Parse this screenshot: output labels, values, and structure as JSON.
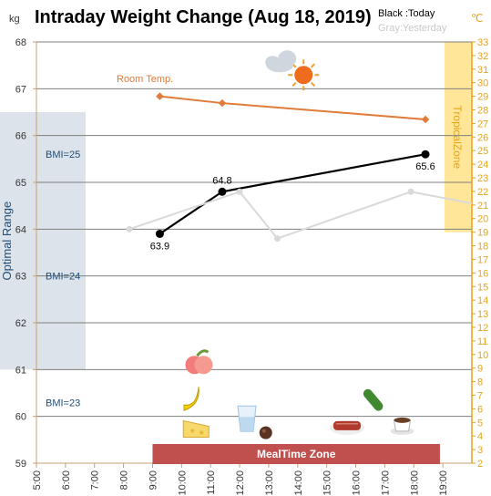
{
  "chart_data": {
    "type": "line",
    "title": "Intraday Weight Change (Aug 18, 2019)",
    "legend": {
      "today": "Black :Today",
      "yesterday": "Gray:Yesterday"
    },
    "y_left": {
      "unit": "kg",
      "min": 59,
      "max": 68,
      "step": 1
    },
    "y_right": {
      "unit": "℃",
      "min": 2,
      "max": 33,
      "step": 1
    },
    "x": {
      "min": 5,
      "max": 20,
      "ticks": [
        "5:00",
        "6:00",
        "7:00",
        "8:00",
        "9:00",
        "10:00",
        "11:00",
        "12:00",
        "13:00",
        "14:00",
        "15:00",
        "16:00",
        "17:00",
        "18:00",
        "19:00"
      ]
    },
    "series": [
      {
        "name": "Today",
        "color": "#000000",
        "points": [
          {
            "x": 9.25,
            "y": 63.9,
            "label": "63.9"
          },
          {
            "x": 11.4,
            "y": 64.8,
            "label": "64.8"
          },
          {
            "x": 18.4,
            "y": 65.6,
            "label": "65.6"
          }
        ]
      },
      {
        "name": "Yesterday",
        "color": "#d9d9d9",
        "points": [
          {
            "x": 8.2,
            "y": 64.0
          },
          {
            "x": 12.0,
            "y": 64.8
          },
          {
            "x": 13.3,
            "y": 63.8
          },
          {
            "x": 17.9,
            "y": 64.8
          },
          {
            "x": 20.0,
            "y": 64.55
          }
        ]
      },
      {
        "name": "Room Temp.",
        "color": "#e07b39",
        "axis": "right",
        "points": [
          {
            "x": 9.25,
            "y": 29
          },
          {
            "x": 11.4,
            "y": 28.5
          },
          {
            "x": 18.4,
            "y": 27.3
          }
        ]
      }
    ],
    "bmi_lines": [
      {
        "label": "BMI=25",
        "y": 65.6
      },
      {
        "label": "BMI=24",
        "y": 63.0
      },
      {
        "label": "BMI=23",
        "y": 60.3
      }
    ],
    "optimal_range": {
      "label": "Optimal Range",
      "from": 61.0,
      "to": 66.5
    },
    "tropical_zone": {
      "label": "TropicalZone",
      "from_temp": 19,
      "to_temp": 33
    },
    "meal_time_zone": {
      "label": "MealTime Zone",
      "from": 9,
      "to": 18.9
    },
    "icons": [
      {
        "name": "sun-cloud-icon",
        "x": 13.7,
        "y": 67.45
      },
      {
        "name": "peach-icon",
        "x": 10.6,
        "y": 61.1
      },
      {
        "name": "banana-icon",
        "x": 10.4,
        "y": 60.4
      },
      {
        "name": "cheese-icon",
        "x": 10.5,
        "y": 59.75
      },
      {
        "name": "water-glass-icon",
        "x": 12.25,
        "y": 59.95
      },
      {
        "name": "chocolate-icon",
        "x": 12.9,
        "y": 59.65
      },
      {
        "name": "cucumber-icon",
        "x": 16.6,
        "y": 60.35
      },
      {
        "name": "steak-icon",
        "x": 15.7,
        "y": 59.8
      },
      {
        "name": "coffee-icon",
        "x": 17.6,
        "y": 59.8
      }
    ],
    "colors": {
      "left_axis": "#c8a070",
      "right_axis": "#e8a317",
      "optimal_fill": "#dde3ea",
      "tropical_fill": "#ffe699",
      "meal_bar": "#c0504d",
      "bmi_text": "#1f4e79"
    }
  }
}
